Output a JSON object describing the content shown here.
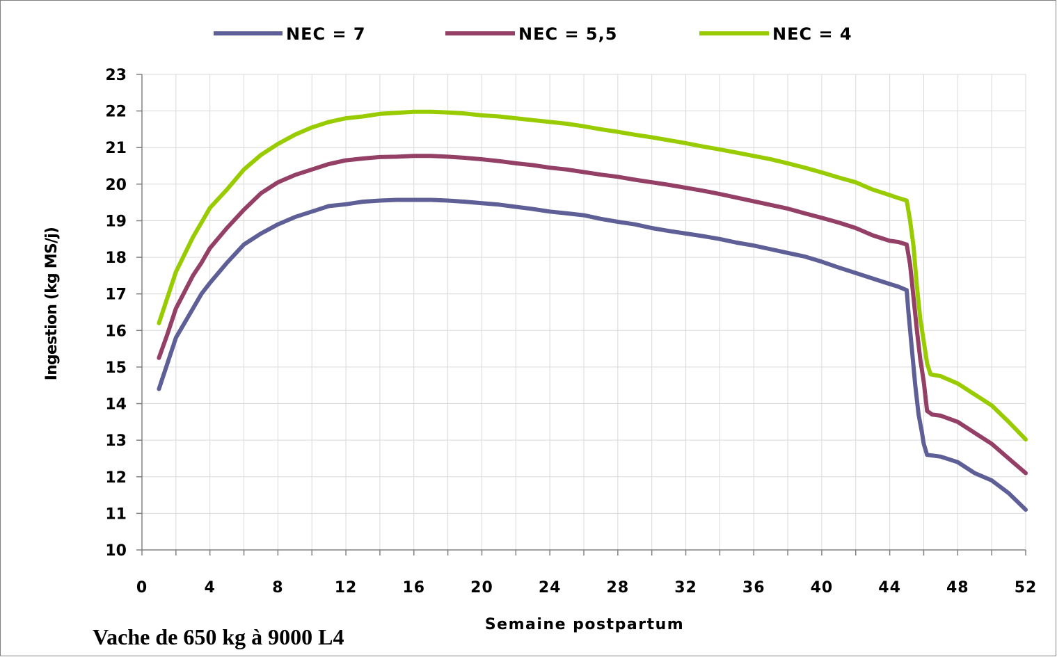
{
  "chart_data": {
    "type": "line",
    "xlabel": "Semaine postpartum",
    "ylabel": "Ingestion (kg MS/j)",
    "xlim": [
      0,
      52
    ],
    "ylim": [
      10,
      23
    ],
    "xticks": [
      0,
      4,
      8,
      12,
      16,
      20,
      24,
      28,
      32,
      36,
      40,
      44,
      48,
      52
    ],
    "yticks": [
      10,
      11,
      12,
      13,
      14,
      15,
      16,
      17,
      18,
      19,
      20,
      21,
      22,
      23
    ],
    "grid": true,
    "legend_position": "top",
    "series": [
      {
        "name": "NEC = 7",
        "color": "#5F5F97",
        "points": [
          [
            1,
            14.4
          ],
          [
            1.5,
            15.1
          ],
          [
            2,
            15.8
          ],
          [
            3,
            16.6
          ],
          [
            3.5,
            17
          ],
          [
            4,
            17.3
          ],
          [
            5,
            17.85
          ],
          [
            6,
            18.35
          ],
          [
            7,
            18.65
          ],
          [
            8,
            18.9
          ],
          [
            9,
            19.1
          ],
          [
            10,
            19.25
          ],
          [
            11,
            19.4
          ],
          [
            12,
            19.45
          ],
          [
            13,
            19.52
          ],
          [
            14,
            19.55
          ],
          [
            15,
            19.57
          ],
          [
            16,
            19.57
          ],
          [
            17,
            19.57
          ],
          [
            18,
            19.55
          ],
          [
            19,
            19.52
          ],
          [
            20,
            19.48
          ],
          [
            21,
            19.44
          ],
          [
            22,
            19.38
          ],
          [
            23,
            19.32
          ],
          [
            24,
            19.25
          ],
          [
            25,
            19.2
          ],
          [
            26,
            19.15
          ],
          [
            27,
            19.05
          ],
          [
            28,
            18.97
          ],
          [
            29,
            18.9
          ],
          [
            30,
            18.8
          ],
          [
            31,
            18.72
          ],
          [
            32,
            18.65
          ],
          [
            33,
            18.58
          ],
          [
            34,
            18.5
          ],
          [
            35,
            18.4
          ],
          [
            36,
            18.32
          ],
          [
            37,
            18.22
          ],
          [
            38,
            18.12
          ],
          [
            39,
            18.02
          ],
          [
            40,
            17.88
          ],
          [
            41,
            17.72
          ],
          [
            42,
            17.57
          ],
          [
            43,
            17.42
          ],
          [
            44,
            17.27
          ],
          [
            44.5,
            17.2
          ],
          [
            45,
            17.1
          ],
          [
            45.1,
            16.5
          ],
          [
            45.3,
            15.5
          ],
          [
            45.5,
            14.5
          ],
          [
            45.7,
            13.7
          ],
          [
            45.9,
            13.2
          ],
          [
            46,
            12.9
          ],
          [
            46.2,
            12.6
          ],
          [
            47,
            12.55
          ],
          [
            48,
            12.4
          ],
          [
            49,
            12.1
          ],
          [
            50,
            11.9
          ],
          [
            51,
            11.55
          ],
          [
            52,
            11.1
          ]
        ]
      },
      {
        "name": "NEC = 5,5",
        "color": "#943F66",
        "points": [
          [
            1,
            15.25
          ],
          [
            1.5,
            15.9
          ],
          [
            2,
            16.6
          ],
          [
            3,
            17.5
          ],
          [
            3.5,
            17.85
          ],
          [
            4,
            18.25
          ],
          [
            5,
            18.8
          ],
          [
            6,
            19.3
          ],
          [
            7,
            19.75
          ],
          [
            8,
            20.05
          ],
          [
            9,
            20.25
          ],
          [
            10,
            20.4
          ],
          [
            11,
            20.55
          ],
          [
            12,
            20.65
          ],
          [
            13,
            20.7
          ],
          [
            14,
            20.74
          ],
          [
            15,
            20.75
          ],
          [
            16,
            20.77
          ],
          [
            17,
            20.77
          ],
          [
            18,
            20.75
          ],
          [
            19,
            20.72
          ],
          [
            20,
            20.68
          ],
          [
            21,
            20.63
          ],
          [
            22,
            20.57
          ],
          [
            23,
            20.52
          ],
          [
            24,
            20.45
          ],
          [
            25,
            20.4
          ],
          [
            26,
            20.33
          ],
          [
            27,
            20.26
          ],
          [
            28,
            20.2
          ],
          [
            29,
            20.12
          ],
          [
            30,
            20.05
          ],
          [
            31,
            19.98
          ],
          [
            32,
            19.9
          ],
          [
            33,
            19.82
          ],
          [
            34,
            19.73
          ],
          [
            35,
            19.63
          ],
          [
            36,
            19.53
          ],
          [
            37,
            19.43
          ],
          [
            38,
            19.33
          ],
          [
            39,
            19.2
          ],
          [
            40,
            19.08
          ],
          [
            41,
            18.95
          ],
          [
            42,
            18.8
          ],
          [
            43,
            18.6
          ],
          [
            44,
            18.45
          ],
          [
            44.5,
            18.42
          ],
          [
            45,
            18.35
          ],
          [
            45.2,
            17.8
          ],
          [
            45.4,
            16.9
          ],
          [
            45.6,
            16
          ],
          [
            45.8,
            15.2
          ],
          [
            46,
            14.6
          ],
          [
            46.2,
            13.8
          ],
          [
            46.5,
            13.7
          ],
          [
            47,
            13.67
          ],
          [
            48,
            13.5
          ],
          [
            49,
            13.2
          ],
          [
            50,
            12.9
          ],
          [
            51,
            12.5
          ],
          [
            52,
            12.1
          ]
        ]
      },
      {
        "name": "NEC = 4",
        "color": "#99CC00",
        "points": [
          [
            1,
            16.2
          ],
          [
            1.5,
            16.9
          ],
          [
            2,
            17.6
          ],
          [
            3,
            18.55
          ],
          [
            3.5,
            18.95
          ],
          [
            4,
            19.35
          ],
          [
            5,
            19.85
          ],
          [
            6,
            20.4
          ],
          [
            7,
            20.8
          ],
          [
            8,
            21.1
          ],
          [
            9,
            21.35
          ],
          [
            10,
            21.55
          ],
          [
            11,
            21.7
          ],
          [
            12,
            21.8
          ],
          [
            13,
            21.85
          ],
          [
            14,
            21.92
          ],
          [
            15,
            21.95
          ],
          [
            16,
            21.98
          ],
          [
            17,
            21.98
          ],
          [
            18,
            21.96
          ],
          [
            19,
            21.93
          ],
          [
            20,
            21.88
          ],
          [
            21,
            21.85
          ],
          [
            22,
            21.8
          ],
          [
            23,
            21.75
          ],
          [
            24,
            21.7
          ],
          [
            25,
            21.65
          ],
          [
            26,
            21.58
          ],
          [
            27,
            21.5
          ],
          [
            28,
            21.43
          ],
          [
            29,
            21.35
          ],
          [
            30,
            21.28
          ],
          [
            31,
            21.2
          ],
          [
            32,
            21.12
          ],
          [
            33,
            21.03
          ],
          [
            34,
            20.95
          ],
          [
            35,
            20.86
          ],
          [
            36,
            20.77
          ],
          [
            37,
            20.68
          ],
          [
            38,
            20.57
          ],
          [
            39,
            20.45
          ],
          [
            40,
            20.32
          ],
          [
            41,
            20.18
          ],
          [
            42,
            20.05
          ],
          [
            43,
            19.85
          ],
          [
            44,
            19.7
          ],
          [
            44.5,
            19.62
          ],
          [
            45,
            19.55
          ],
          [
            45.2,
            19
          ],
          [
            45.4,
            18.3
          ],
          [
            45.6,
            17.2
          ],
          [
            45.8,
            16.3
          ],
          [
            46,
            15.7
          ],
          [
            46.2,
            15.1
          ],
          [
            46.4,
            14.8
          ],
          [
            47,
            14.75
          ],
          [
            48,
            14.55
          ],
          [
            49,
            14.25
          ],
          [
            50,
            13.95
          ],
          [
            51,
            13.5
          ],
          [
            52,
            13.02
          ]
        ]
      }
    ]
  },
  "caption": "Vache de 650 kg à 9000 L4"
}
